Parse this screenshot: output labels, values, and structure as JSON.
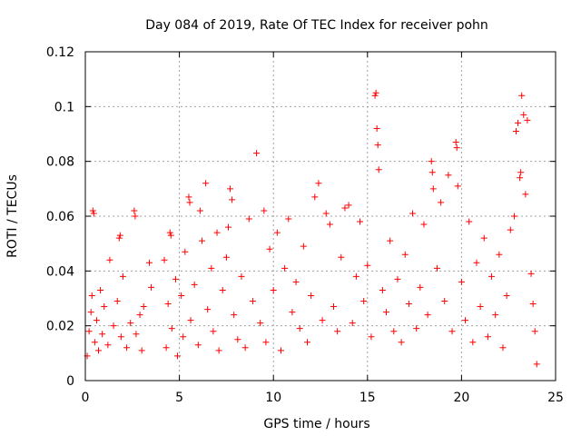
{
  "chart_data": {
    "type": "scatter",
    "title": "Day 084 of 2019, Rate Of TEC Index for receiver pohn",
    "xlabel": "GPS time / hours",
    "ylabel": "ROTI / TECUs",
    "xlim": [
      0,
      25
    ],
    "ylim": [
      0,
      0.12
    ],
    "xticks": [
      0,
      5,
      10,
      15,
      20,
      25
    ],
    "xtick_labels": [
      "0",
      "5",
      "10",
      "15",
      "20",
      "25"
    ],
    "yticks": [
      0,
      0.02,
      0.04,
      0.06,
      0.08,
      0.1,
      0.12
    ],
    "ytick_labels": [
      "0",
      "0.02",
      "0.04",
      "0.06",
      "0.08",
      "0.1",
      "0.12"
    ],
    "grid": true,
    "marker": "+",
    "color": "#ff0000",
    "series": [
      {
        "name": "ROTI",
        "points": [
          [
            0.1,
            0.009
          ],
          [
            0.2,
            0.018
          ],
          [
            0.3,
            0.025
          ],
          [
            0.35,
            0.031
          ],
          [
            0.4,
            0.062
          ],
          [
            0.45,
            0.061
          ],
          [
            0.5,
            0.014
          ],
          [
            0.6,
            0.022
          ],
          [
            0.7,
            0.011
          ],
          [
            0.8,
            0.033
          ],
          [
            0.9,
            0.017
          ],
          [
            1.0,
            0.027
          ],
          [
            1.2,
            0.013
          ],
          [
            1.3,
            0.044
          ],
          [
            1.5,
            0.02
          ],
          [
            1.7,
            0.029
          ],
          [
            1.8,
            0.052
          ],
          [
            1.85,
            0.053
          ],
          [
            1.9,
            0.016
          ],
          [
            2.0,
            0.038
          ],
          [
            2.2,
            0.012
          ],
          [
            2.4,
            0.021
          ],
          [
            2.6,
            0.062
          ],
          [
            2.65,
            0.06
          ],
          [
            2.7,
            0.017
          ],
          [
            2.9,
            0.024
          ],
          [
            3.0,
            0.011
          ],
          [
            3.1,
            0.027
          ],
          [
            3.4,
            0.043
          ],
          [
            3.5,
            0.034
          ],
          [
            4.2,
            0.044
          ],
          [
            4.3,
            0.012
          ],
          [
            4.4,
            0.028
          ],
          [
            4.5,
            0.054
          ],
          [
            4.55,
            0.053
          ],
          [
            4.6,
            0.019
          ],
          [
            4.8,
            0.037
          ],
          [
            4.9,
            0.009
          ],
          [
            5.1,
            0.031
          ],
          [
            5.2,
            0.016
          ],
          [
            5.3,
            0.047
          ],
          [
            5.5,
            0.067
          ],
          [
            5.55,
            0.065
          ],
          [
            5.6,
            0.022
          ],
          [
            5.8,
            0.035
          ],
          [
            6.0,
            0.013
          ],
          [
            6.1,
            0.062
          ],
          [
            6.2,
            0.051
          ],
          [
            6.4,
            0.072
          ],
          [
            6.5,
            0.026
          ],
          [
            6.7,
            0.041
          ],
          [
            6.8,
            0.018
          ],
          [
            7.0,
            0.054
          ],
          [
            7.1,
            0.011
          ],
          [
            7.3,
            0.033
          ],
          [
            7.5,
            0.045
          ],
          [
            7.6,
            0.056
          ],
          [
            7.7,
            0.07
          ],
          [
            7.8,
            0.066
          ],
          [
            7.9,
            0.024
          ],
          [
            8.1,
            0.015
          ],
          [
            8.3,
            0.038
          ],
          [
            8.5,
            0.012
          ],
          [
            8.7,
            0.059
          ],
          [
            8.9,
            0.029
          ],
          [
            9.1,
            0.083
          ],
          [
            9.3,
            0.021
          ],
          [
            9.5,
            0.062
          ],
          [
            9.6,
            0.014
          ],
          [
            9.8,
            0.048
          ],
          [
            10.0,
            0.033
          ],
          [
            10.2,
            0.054
          ],
          [
            10.4,
            0.011
          ],
          [
            10.6,
            0.041
          ],
          [
            10.8,
            0.059
          ],
          [
            11.0,
            0.025
          ],
          [
            11.2,
            0.036
          ],
          [
            11.4,
            0.019
          ],
          [
            11.6,
            0.049
          ],
          [
            11.8,
            0.014
          ],
          [
            12.0,
            0.031
          ],
          [
            12.2,
            0.067
          ],
          [
            12.4,
            0.072
          ],
          [
            12.6,
            0.022
          ],
          [
            12.8,
            0.061
          ],
          [
            13.0,
            0.057
          ],
          [
            13.2,
            0.027
          ],
          [
            13.4,
            0.018
          ],
          [
            13.6,
            0.045
          ],
          [
            13.8,
            0.063
          ],
          [
            14.0,
            0.064
          ],
          [
            14.2,
            0.021
          ],
          [
            14.4,
            0.038
          ],
          [
            14.6,
            0.058
          ],
          [
            14.8,
            0.029
          ],
          [
            15.0,
            0.042
          ],
          [
            15.2,
            0.016
          ],
          [
            15.4,
            0.104
          ],
          [
            15.45,
            0.105
          ],
          [
            15.5,
            0.092
          ],
          [
            15.55,
            0.086
          ],
          [
            15.6,
            0.077
          ],
          [
            15.8,
            0.033
          ],
          [
            16.0,
            0.025
          ],
          [
            16.2,
            0.051
          ],
          [
            16.4,
            0.018
          ],
          [
            16.6,
            0.037
          ],
          [
            16.8,
            0.014
          ],
          [
            17.0,
            0.046
          ],
          [
            17.2,
            0.028
          ],
          [
            17.4,
            0.061
          ],
          [
            17.6,
            0.019
          ],
          [
            17.8,
            0.034
          ],
          [
            18.0,
            0.057
          ],
          [
            18.2,
            0.024
          ],
          [
            18.4,
            0.08
          ],
          [
            18.45,
            0.076
          ],
          [
            18.5,
            0.07
          ],
          [
            18.7,
            0.041
          ],
          [
            18.9,
            0.065
          ],
          [
            19.1,
            0.029
          ],
          [
            19.3,
            0.075
          ],
          [
            19.5,
            0.018
          ],
          [
            19.7,
            0.087
          ],
          [
            19.75,
            0.085
          ],
          [
            19.8,
            0.071
          ],
          [
            20.0,
            0.036
          ],
          [
            20.2,
            0.022
          ],
          [
            20.4,
            0.058
          ],
          [
            20.6,
            0.014
          ],
          [
            20.8,
            0.043
          ],
          [
            21.0,
            0.027
          ],
          [
            21.2,
            0.052
          ],
          [
            21.4,
            0.016
          ],
          [
            21.6,
            0.038
          ],
          [
            21.8,
            0.024
          ],
          [
            22.0,
            0.046
          ],
          [
            22.2,
            0.012
          ],
          [
            22.4,
            0.031
          ],
          [
            22.6,
            0.055
          ],
          [
            22.8,
            0.06
          ],
          [
            22.9,
            0.091
          ],
          [
            23.0,
            0.094
          ],
          [
            23.1,
            0.074
          ],
          [
            23.15,
            0.076
          ],
          [
            23.2,
            0.104
          ],
          [
            23.3,
            0.097
          ],
          [
            23.4,
            0.068
          ],
          [
            23.5,
            0.095
          ],
          [
            23.7,
            0.039
          ],
          [
            23.8,
            0.028
          ],
          [
            23.9,
            0.018
          ],
          [
            24.0,
            0.006
          ]
        ]
      }
    ]
  }
}
